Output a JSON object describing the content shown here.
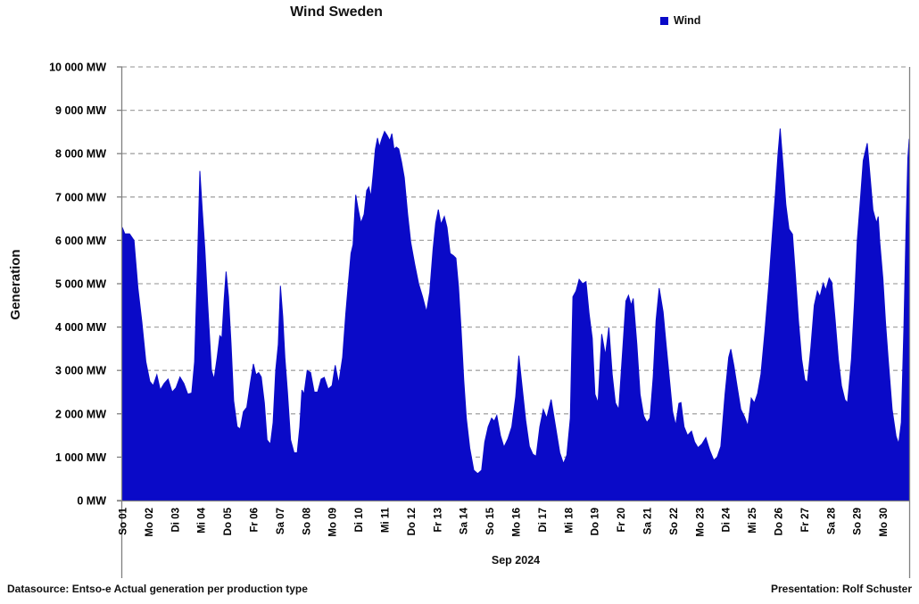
{
  "chart_data": {
    "type": "area",
    "title": "Wind Sweden",
    "legend": [
      {
        "label": "Wind",
        "color": "#0a0ac8"
      }
    ],
    "ylabel": "Generation",
    "xlabel": "Sep 2024",
    "y_unit": "MW",
    "ylim": [
      0,
      10000
    ],
    "y_tick_step": 1000,
    "y_tick_labels": [
      "0 MW",
      "1 000 MW",
      "2 000 MW",
      "3 000 MW",
      "4 000 MW",
      "5 000 MW",
      "6 000 MW",
      "7 000 MW",
      "8 000 MW",
      "9 000 MW",
      "10 000 MW"
    ],
    "x_tick_labels": [
      "So 01",
      "Mo 02",
      "Di 03",
      "Mi 04",
      "Do 05",
      "Fr 06",
      "Sa 07",
      "So 08",
      "Mo 09",
      "Di 10",
      "Mi 11",
      "Do 12",
      "Fr 13",
      "Sa 14",
      "So 15",
      "Mo 16",
      "Di 17",
      "Mi 18",
      "Do 19",
      "Fr 20",
      "Sa 21",
      "So 22",
      "Mo 23",
      "Di 24",
      "Mi 25",
      "Do 26",
      "Fr 27",
      "Sa 28",
      "So 29",
      "Mo 30"
    ],
    "x_range_days": [
      0,
      30
    ],
    "grid": "horizontal-dashed",
    "series": [
      {
        "name": "Wind",
        "color": "#0a0ac8",
        "points": [
          [
            0.0,
            6300
          ],
          [
            0.1,
            6150
          ],
          [
            0.28,
            6150
          ],
          [
            0.45,
            6000
          ],
          [
            0.6,
            4900
          ],
          [
            0.75,
            4100
          ],
          [
            0.9,
            3200
          ],
          [
            1.05,
            2750
          ],
          [
            1.18,
            2650
          ],
          [
            1.32,
            2900
          ],
          [
            1.45,
            2550
          ],
          [
            1.6,
            2700
          ],
          [
            1.75,
            2800
          ],
          [
            1.9,
            2500
          ],
          [
            2.05,
            2600
          ],
          [
            2.2,
            2850
          ],
          [
            2.35,
            2700
          ],
          [
            2.5,
            2450
          ],
          [
            2.65,
            2480
          ],
          [
            2.76,
            3200
          ],
          [
            2.86,
            5300
          ],
          [
            2.96,
            7600
          ],
          [
            3.05,
            6700
          ],
          [
            3.15,
            5800
          ],
          [
            3.25,
            4600
          ],
          [
            3.4,
            3000
          ],
          [
            3.5,
            2800
          ],
          [
            3.62,
            3300
          ],
          [
            3.72,
            3800
          ],
          [
            3.8,
            3750
          ],
          [
            3.88,
            4600
          ],
          [
            3.96,
            5280
          ],
          [
            4.05,
            4700
          ],
          [
            4.15,
            3600
          ],
          [
            4.25,
            2300
          ],
          [
            4.38,
            1700
          ],
          [
            4.5,
            1650
          ],
          [
            4.62,
            2050
          ],
          [
            4.75,
            2150
          ],
          [
            4.88,
            2700
          ],
          [
            5.0,
            3150
          ],
          [
            5.1,
            2900
          ],
          [
            5.2,
            2950
          ],
          [
            5.3,
            2850
          ],
          [
            5.42,
            2250
          ],
          [
            5.52,
            1400
          ],
          [
            5.65,
            1300
          ],
          [
            5.75,
            1800
          ],
          [
            5.85,
            3000
          ],
          [
            5.95,
            3600
          ],
          [
            6.03,
            4950
          ],
          [
            6.12,
            4250
          ],
          [
            6.2,
            3300
          ],
          [
            6.3,
            2500
          ],
          [
            6.42,
            1400
          ],
          [
            6.55,
            1100
          ],
          [
            6.67,
            1100
          ],
          [
            6.77,
            1700
          ],
          [
            6.85,
            2550
          ],
          [
            6.93,
            2450
          ],
          [
            7.05,
            3000
          ],
          [
            7.18,
            2950
          ],
          [
            7.32,
            2500
          ],
          [
            7.45,
            2500
          ],
          [
            7.58,
            2800
          ],
          [
            7.7,
            2840
          ],
          [
            7.85,
            2570
          ],
          [
            8.0,
            2650
          ],
          [
            8.12,
            3120
          ],
          [
            8.25,
            2700
          ],
          [
            8.4,
            3300
          ],
          [
            8.52,
            4300
          ],
          [
            8.62,
            5000
          ],
          [
            8.72,
            5700
          ],
          [
            8.8,
            5900
          ],
          [
            8.9,
            7050
          ],
          [
            9.0,
            6700
          ],
          [
            9.1,
            6400
          ],
          [
            9.22,
            6600
          ],
          [
            9.32,
            7150
          ],
          [
            9.4,
            7230
          ],
          [
            9.48,
            7000
          ],
          [
            9.56,
            7500
          ],
          [
            9.65,
            8100
          ],
          [
            9.73,
            8360
          ],
          [
            9.8,
            8150
          ],
          [
            9.9,
            8350
          ],
          [
            10.0,
            8510
          ],
          [
            10.1,
            8420
          ],
          [
            10.2,
            8300
          ],
          [
            10.28,
            8460
          ],
          [
            10.36,
            8100
          ],
          [
            10.45,
            8150
          ],
          [
            10.54,
            8110
          ],
          [
            10.65,
            7800
          ],
          [
            10.75,
            7450
          ],
          [
            10.88,
            6600
          ],
          [
            11.0,
            5950
          ],
          [
            11.15,
            5450
          ],
          [
            11.3,
            5000
          ],
          [
            11.45,
            4700
          ],
          [
            11.6,
            4350
          ],
          [
            11.72,
            4800
          ],
          [
            11.85,
            5800
          ],
          [
            11.95,
            6400
          ],
          [
            12.05,
            6710
          ],
          [
            12.15,
            6370
          ],
          [
            12.28,
            6550
          ],
          [
            12.38,
            6300
          ],
          [
            12.5,
            5700
          ],
          [
            12.62,
            5650
          ],
          [
            12.72,
            5590
          ],
          [
            12.82,
            4930
          ],
          [
            12.92,
            3940
          ],
          [
            13.02,
            2770
          ],
          [
            13.12,
            1890
          ],
          [
            13.25,
            1210
          ],
          [
            13.4,
            700
          ],
          [
            13.55,
            620
          ],
          [
            13.7,
            700
          ],
          [
            13.82,
            1350
          ],
          [
            13.95,
            1700
          ],
          [
            14.08,
            1900
          ],
          [
            14.18,
            1830
          ],
          [
            14.28,
            1960
          ],
          [
            14.42,
            1500
          ],
          [
            14.55,
            1230
          ],
          [
            14.7,
            1420
          ],
          [
            14.85,
            1700
          ],
          [
            15.0,
            2400
          ],
          [
            15.12,
            3340
          ],
          [
            15.25,
            2600
          ],
          [
            15.38,
            1850
          ],
          [
            15.52,
            1250
          ],
          [
            15.65,
            1070
          ],
          [
            15.78,
            1020
          ],
          [
            15.92,
            1700
          ],
          [
            16.05,
            2100
          ],
          [
            16.18,
            1900
          ],
          [
            16.35,
            2330
          ],
          [
            16.52,
            1700
          ],
          [
            16.68,
            1100
          ],
          [
            16.82,
            850
          ],
          [
            16.95,
            1050
          ],
          [
            17.08,
            1900
          ],
          [
            17.18,
            4700
          ],
          [
            17.3,
            4830
          ],
          [
            17.42,
            5100
          ],
          [
            17.55,
            5000
          ],
          [
            17.68,
            5050
          ],
          [
            17.8,
            4300
          ],
          [
            17.92,
            3740
          ],
          [
            18.02,
            2450
          ],
          [
            18.14,
            2250
          ],
          [
            18.28,
            3840
          ],
          [
            18.42,
            3350
          ],
          [
            18.55,
            3990
          ],
          [
            18.68,
            2900
          ],
          [
            18.8,
            2250
          ],
          [
            18.93,
            2100
          ],
          [
            19.08,
            3500
          ],
          [
            19.2,
            4600
          ],
          [
            19.3,
            4730
          ],
          [
            19.4,
            4500
          ],
          [
            19.48,
            4660
          ],
          [
            19.62,
            3600
          ],
          [
            19.74,
            2450
          ],
          [
            19.88,
            1950
          ],
          [
            20.0,
            1800
          ],
          [
            20.12,
            1900
          ],
          [
            20.24,
            2850
          ],
          [
            20.35,
            4150
          ],
          [
            20.47,
            4900
          ],
          [
            20.62,
            4350
          ],
          [
            20.74,
            3550
          ],
          [
            20.86,
            2800
          ],
          [
            20.98,
            2050
          ],
          [
            21.1,
            1730
          ],
          [
            21.22,
            2240
          ],
          [
            21.3,
            2260
          ],
          [
            21.42,
            1700
          ],
          [
            21.55,
            1500
          ],
          [
            21.7,
            1600
          ],
          [
            21.82,
            1350
          ],
          [
            21.95,
            1220
          ],
          [
            22.1,
            1300
          ],
          [
            22.25,
            1450
          ],
          [
            22.4,
            1150
          ],
          [
            22.55,
            930
          ],
          [
            22.68,
            1000
          ],
          [
            22.82,
            1250
          ],
          [
            22.98,
            2450
          ],
          [
            23.12,
            3300
          ],
          [
            23.2,
            3490
          ],
          [
            23.32,
            3100
          ],
          [
            23.45,
            2600
          ],
          [
            23.58,
            2100
          ],
          [
            23.72,
            1930
          ],
          [
            23.85,
            1720
          ],
          [
            23.98,
            2360
          ],
          [
            24.1,
            2250
          ],
          [
            24.22,
            2470
          ],
          [
            24.35,
            2920
          ],
          [
            24.5,
            3900
          ],
          [
            24.65,
            5000
          ],
          [
            24.78,
            6100
          ],
          [
            24.9,
            7100
          ],
          [
            25.0,
            8000
          ],
          [
            25.08,
            8580
          ],
          [
            25.2,
            7650
          ],
          [
            25.3,
            6820
          ],
          [
            25.42,
            6260
          ],
          [
            25.55,
            6140
          ],
          [
            25.65,
            5320
          ],
          [
            25.78,
            4150
          ],
          [
            25.9,
            3260
          ],
          [
            26.02,
            2780
          ],
          [
            26.12,
            2720
          ],
          [
            26.25,
            3530
          ],
          [
            26.38,
            4500
          ],
          [
            26.5,
            4830
          ],
          [
            26.6,
            4700
          ],
          [
            26.72,
            5010
          ],
          [
            26.82,
            4850
          ],
          [
            26.95,
            5130
          ],
          [
            27.05,
            5030
          ],
          [
            27.18,
            4150
          ],
          [
            27.3,
            3260
          ],
          [
            27.42,
            2650
          ],
          [
            27.55,
            2320
          ],
          [
            27.65,
            2250
          ],
          [
            27.8,
            3260
          ],
          [
            27.92,
            4620
          ],
          [
            28.02,
            6000
          ],
          [
            28.15,
            7020
          ],
          [
            28.25,
            7840
          ],
          [
            28.4,
            8240
          ],
          [
            28.52,
            7400
          ],
          [
            28.62,
            6700
          ],
          [
            28.75,
            6400
          ],
          [
            28.82,
            6550
          ],
          [
            28.88,
            5950
          ],
          [
            29.0,
            5100
          ],
          [
            29.1,
            4100
          ],
          [
            29.2,
            3260
          ],
          [
            29.35,
            2100
          ],
          [
            29.5,
            1480
          ],
          [
            29.6,
            1310
          ],
          [
            29.7,
            1800
          ],
          [
            29.8,
            4000
          ],
          [
            29.88,
            6300
          ],
          [
            29.95,
            7900
          ],
          [
            30.0,
            8340
          ]
        ]
      }
    ]
  },
  "footer": {
    "datasource": "Datasource: Entso-e  Actual generation per production type",
    "presentation": "Presentation: Rolf Schuster"
  },
  "colors": {
    "area": "#0a0ac8",
    "grid": "#a6a6a6",
    "axis": "#808080",
    "text": "#000000"
  }
}
